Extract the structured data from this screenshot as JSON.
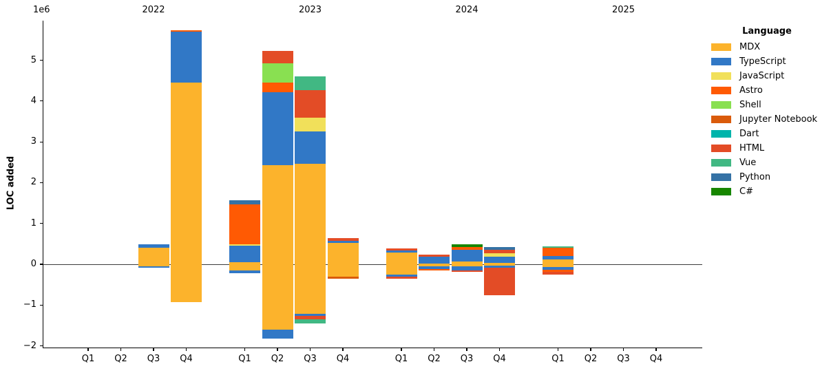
{
  "chart": {
    "y_axis": {
      "label": "LOC added",
      "offset_text": "1e6",
      "tick_labels": [
        "5",
        "4",
        "3",
        "2",
        "1",
        "0",
        "−1",
        "−2"
      ],
      "tick_values": [
        5000000,
        4000000,
        3000000,
        2000000,
        1000000,
        0,
        -1000000,
        -2000000
      ]
    },
    "x_axis": {
      "quarter_labels": [
        "Q1",
        "Q2",
        "Q3",
        "Q4"
      ],
      "year_labels": [
        "2022",
        "2023",
        "2024",
        "2025"
      ]
    },
    "legend": {
      "title": "Language"
    }
  },
  "chart_data": {
    "type": "bar",
    "stacked": true,
    "title": "",
    "xlabel": "",
    "ylabel": "LOC added",
    "y_unit_multiplier": 1000000,
    "ylim": [
      -2060000,
      5970000
    ],
    "grid": false,
    "legend_position": "right",
    "categories": [
      "2022 Q1",
      "2022 Q2",
      "2022 Q3",
      "2022 Q4",
      "2023 Q1",
      "2023 Q2",
      "2023 Q3",
      "2023 Q4",
      "2024 Q1",
      "2024 Q2",
      "2024 Q3",
      "2024 Q4",
      "2025 Q1",
      "2025 Q2",
      "2025 Q3",
      "2025 Q4"
    ],
    "series": [
      {
        "name": "MDX",
        "color": "#fcb32c",
        "positive": [
          0,
          0,
          410000,
          4460000,
          50000,
          2430000,
          2460000,
          530000,
          280000,
          20000,
          60000,
          30000,
          110000,
          0,
          0,
          0
        ],
        "negative": [
          0,
          0,
          -45000,
          -920000,
          -160000,
          -1610000,
          -1210000,
          -300000,
          -260000,
          -50000,
          -50000,
          -30000,
          -70000,
          0,
          0,
          0
        ]
      },
      {
        "name": "TypeScript",
        "color": "#3178c6",
        "positive": [
          0,
          0,
          80000,
          1240000,
          400000,
          1790000,
          800000,
          45000,
          50000,
          170000,
          290000,
          160000,
          90000,
          0,
          0,
          0
        ],
        "negative": [
          0,
          0,
          -45000,
          0,
          -60000,
          -210000,
          -60000,
          0,
          -45000,
          -70000,
          -100000,
          -50000,
          -60000,
          0,
          0,
          0
        ]
      },
      {
        "name": "JavaScript",
        "color": "#f1e05a",
        "positive": [
          0,
          0,
          0,
          0,
          45000,
          0,
          340000,
          0,
          0,
          0,
          0,
          80000,
          0,
          0,
          0,
          0
        ],
        "negative": [
          0,
          0,
          0,
          0,
          0,
          0,
          0,
          0,
          0,
          0,
          0,
          0,
          0,
          0,
          0,
          0
        ]
      },
      {
        "name": "Astro",
        "color": "#ff5a03",
        "positive": [
          0,
          0,
          0,
          40000,
          980000,
          240000,
          0,
          0,
          0,
          0,
          70000,
          0,
          200000,
          0,
          0,
          0
        ],
        "negative": [
          0,
          0,
          0,
          0,
          0,
          0,
          0,
          0,
          0,
          -40000,
          0,
          0,
          -60000,
          0,
          0,
          0
        ]
      },
      {
        "name": "Shell",
        "color": "#89e051",
        "positive": [
          0,
          0,
          0,
          0,
          0,
          470000,
          0,
          0,
          0,
          0,
          0,
          0,
          0,
          0,
          0,
          0
        ],
        "negative": [
          0,
          0,
          0,
          0,
          0,
          0,
          0,
          0,
          0,
          0,
          0,
          0,
          0,
          0,
          0,
          0
        ]
      },
      {
        "name": "Jupyter Notebook",
        "color": "#DA5B0B",
        "positive": [
          0,
          0,
          0,
          0,
          0,
          0,
          0,
          0,
          0,
          0,
          0,
          0,
          0,
          0,
          0,
          0
        ],
        "negative": [
          0,
          0,
          0,
          0,
          0,
          0,
          0,
          -50000,
          0,
          0,
          0,
          0,
          0,
          0,
          0,
          0
        ]
      },
      {
        "name": "Dart",
        "color": "#00B4AB",
        "positive": [
          0,
          0,
          0,
          0,
          0,
          0,
          0,
          0,
          0,
          0,
          0,
          0,
          0,
          0,
          0,
          0
        ],
        "negative": [
          0,
          0,
          0,
          0,
          0,
          0,
          0,
          0,
          0,
          0,
          0,
          0,
          0,
          0,
          0,
          0
        ]
      },
      {
        "name": "HTML",
        "color": "#e34c26",
        "positive": [
          0,
          0,
          0,
          0,
          0,
          290000,
          670000,
          70000,
          60000,
          50000,
          0,
          80000,
          0,
          0,
          0,
          0
        ],
        "negative": [
          0,
          0,
          0,
          0,
          0,
          0,
          -80000,
          0,
          -50000,
          0,
          -40000,
          -680000,
          -60000,
          0,
          0,
          0
        ]
      },
      {
        "name": "Vue",
        "color": "#41b883",
        "positive": [
          0,
          0,
          0,
          0,
          0,
          0,
          340000,
          0,
          0,
          0,
          0,
          0,
          35000,
          0,
          0,
          0
        ],
        "negative": [
          0,
          0,
          0,
          0,
          0,
          0,
          -100000,
          0,
          0,
          0,
          0,
          0,
          0,
          0,
          0,
          0
        ]
      },
      {
        "name": "Python",
        "color": "#3572A5",
        "positive": [
          0,
          0,
          0,
          0,
          100000,
          0,
          0,
          0,
          0,
          0,
          0,
          70000,
          0,
          0,
          0,
          0
        ],
        "negative": [
          0,
          0,
          0,
          0,
          0,
          0,
          0,
          0,
          0,
          0,
          0,
          0,
          0,
          0,
          0,
          0
        ]
      },
      {
        "name": "C#",
        "color": "#178600",
        "positive": [
          0,
          0,
          0,
          0,
          0,
          0,
          0,
          0,
          0,
          0,
          70000,
          0,
          0,
          0,
          0,
          0
        ],
        "negative": [
          0,
          0,
          0,
          0,
          0,
          0,
          0,
          0,
          0,
          0,
          0,
          0,
          0,
          0,
          0,
          0
        ]
      }
    ]
  }
}
